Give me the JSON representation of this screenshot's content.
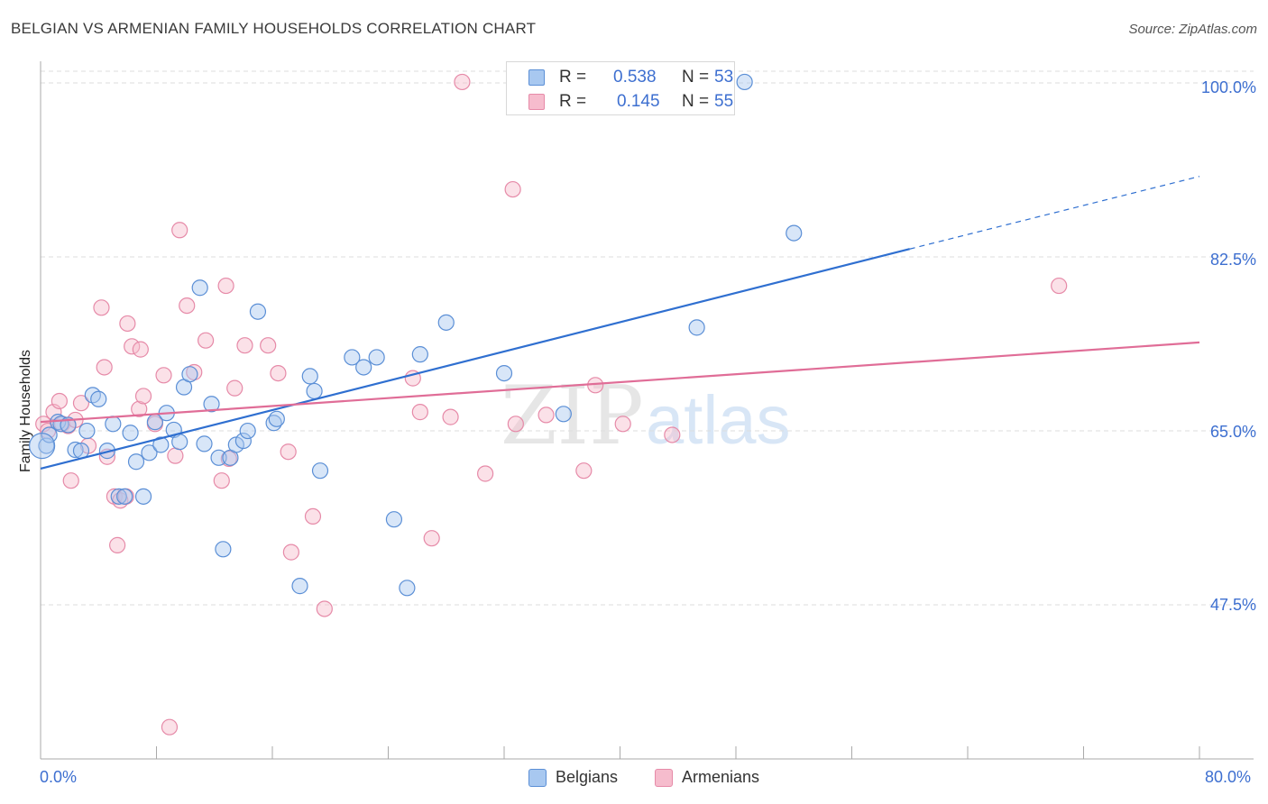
{
  "header": {
    "title": "BELGIAN VS ARMENIAN FAMILY HOUSEHOLDS CORRELATION CHART",
    "source": "Source: ZipAtlas.com"
  },
  "watermark": {
    "zip": "ZIP",
    "atlas": "atlas"
  },
  "legend_top": {
    "belgians": {
      "r_label": "R =",
      "r_value": "0.538",
      "n_label": "N =",
      "n_value": "53"
    },
    "armenians": {
      "r_label": "R =",
      "r_value": "0.145",
      "n_label": "N =",
      "n_value": "55"
    }
  },
  "colors": {
    "belgians_fill": "#a8c8f0",
    "belgians_stroke": "#5b8fd6",
    "belgians_line": "#2f6fd0",
    "armenians_fill": "#f6bccd",
    "armenians_stroke": "#e68aa8",
    "armenians_line": "#e06d97",
    "tick_text": "#3d6fd0",
    "grid": "#dddddd"
  },
  "chart_data": {
    "type": "scatter",
    "title": "BELGIAN VS ARMENIAN FAMILY HOUSEHOLDS CORRELATION CHART",
    "xlabel": "",
    "ylabel": "Family Households",
    "xlim": [
      0,
      80
    ],
    "ylim": [
      32,
      102
    ],
    "x_ticks": [
      "0.0%",
      "80.0%"
    ],
    "y_ticks": [
      {
        "value": 100,
        "label": "100.0%"
      },
      {
        "value": 82.5,
        "label": "82.5%"
      },
      {
        "value": 65,
        "label": "65.0%"
      },
      {
        "value": 47.5,
        "label": "47.5%"
      }
    ],
    "grid": true,
    "legend_position": "top-center and bottom",
    "series": [
      {
        "name": "Belgians",
        "r": 0.538,
        "n": 53,
        "trend": {
          "x0": 0,
          "y0": 61.2,
          "x1": 60,
          "y1": 83.3,
          "dashed_to_x": 80,
          "dashed_to_y": 90.6
        },
        "points": [
          [
            0.4,
            63.5
          ],
          [
            0.6,
            64.6
          ],
          [
            1.2,
            65.9
          ],
          [
            1.4,
            65.7
          ],
          [
            1.9,
            65.6
          ],
          [
            2.4,
            63.1
          ],
          [
            2.8,
            63.0
          ],
          [
            3.2,
            65.0
          ],
          [
            3.6,
            68.6
          ],
          [
            4.0,
            68.2
          ],
          [
            4.6,
            63.0
          ],
          [
            5.0,
            65.7
          ],
          [
            5.4,
            58.4
          ],
          [
            5.8,
            58.4
          ],
          [
            6.2,
            64.8
          ],
          [
            6.6,
            61.9
          ],
          [
            7.1,
            58.4
          ],
          [
            7.5,
            62.8
          ],
          [
            7.9,
            65.9
          ],
          [
            8.3,
            63.6
          ],
          [
            8.7,
            66.8
          ],
          [
            9.2,
            65.1
          ],
          [
            9.6,
            63.9
          ],
          [
            9.9,
            69.4
          ],
          [
            10.3,
            70.7
          ],
          [
            11.0,
            79.4
          ],
          [
            11.3,
            63.7
          ],
          [
            11.8,
            67.7
          ],
          [
            12.3,
            62.3
          ],
          [
            12.6,
            53.1
          ],
          [
            13.1,
            62.3
          ],
          [
            13.5,
            63.6
          ],
          [
            14.0,
            64.0
          ],
          [
            14.3,
            65.0
          ],
          [
            15.0,
            77.0
          ],
          [
            16.1,
            65.8
          ],
          [
            16.3,
            66.2
          ],
          [
            17.9,
            49.4
          ],
          [
            18.6,
            70.5
          ],
          [
            18.9,
            69.0
          ],
          [
            19.3,
            61.0
          ],
          [
            21.5,
            72.4
          ],
          [
            22.3,
            71.4
          ],
          [
            23.2,
            72.4
          ],
          [
            24.4,
            56.1
          ],
          [
            25.3,
            49.2
          ],
          [
            26.2,
            72.7
          ],
          [
            28.0,
            75.9
          ],
          [
            32.0,
            70.8
          ],
          [
            36.1,
            66.7
          ],
          [
            45.3,
            75.4
          ],
          [
            48.6,
            100.1
          ],
          [
            52.0,
            84.9
          ]
        ]
      },
      {
        "name": "Armenians",
        "r": 0.145,
        "n": 55,
        "trend": {
          "x0": 0,
          "y0": 65.9,
          "x1": 80,
          "y1": 73.9
        },
        "points": [
          [
            0.2,
            65.7
          ],
          [
            0.5,
            65.0
          ],
          [
            0.9,
            66.9
          ],
          [
            1.3,
            68.0
          ],
          [
            1.5,
            65.7
          ],
          [
            1.9,
            65.5
          ],
          [
            2.1,
            60.0
          ],
          [
            2.4,
            66.1
          ],
          [
            2.8,
            67.8
          ],
          [
            3.3,
            63.5
          ],
          [
            4.2,
            77.4
          ],
          [
            4.4,
            71.4
          ],
          [
            4.6,
            62.4
          ],
          [
            5.1,
            58.4
          ],
          [
            5.3,
            53.5
          ],
          [
            5.5,
            58.0
          ],
          [
            5.9,
            58.4
          ],
          [
            6.0,
            75.8
          ],
          [
            6.3,
            73.5
          ],
          [
            6.8,
            67.2
          ],
          [
            6.9,
            73.2
          ],
          [
            7.1,
            68.5
          ],
          [
            7.9,
            65.7
          ],
          [
            8.5,
            70.6
          ],
          [
            8.9,
            35.2
          ],
          [
            9.3,
            62.5
          ],
          [
            9.6,
            85.2
          ],
          [
            10.1,
            77.6
          ],
          [
            10.6,
            70.9
          ],
          [
            11.4,
            74.1
          ],
          [
            12.5,
            60.0
          ],
          [
            12.8,
            79.6
          ],
          [
            13.0,
            62.2
          ],
          [
            13.4,
            69.3
          ],
          [
            14.1,
            73.6
          ],
          [
            15.7,
            73.6
          ],
          [
            16.4,
            70.8
          ],
          [
            17.1,
            62.9
          ],
          [
            17.3,
            52.8
          ],
          [
            18.8,
            56.4
          ],
          [
            19.6,
            47.1
          ],
          [
            25.7,
            70.3
          ],
          [
            26.2,
            66.9
          ],
          [
            27.0,
            54.2
          ],
          [
            28.3,
            66.4
          ],
          [
            29.1,
            100.1
          ],
          [
            30.7,
            60.7
          ],
          [
            32.6,
            89.3
          ],
          [
            32.8,
            65.7
          ],
          [
            34.9,
            66.6
          ],
          [
            37.5,
            61.0
          ],
          [
            38.3,
            69.6
          ],
          [
            40.2,
            65.7
          ],
          [
            43.6,
            64.6
          ],
          [
            70.3,
            79.6
          ]
        ]
      }
    ]
  },
  "legend_bottom": {
    "belgians": "Belgians",
    "armenians": "Armenians"
  },
  "axis": {
    "x_min_label": "0.0%",
    "x_max_label": "80.0%",
    "y_labels": [
      "100.0%",
      "82.5%",
      "65.0%",
      "47.5%"
    ]
  }
}
